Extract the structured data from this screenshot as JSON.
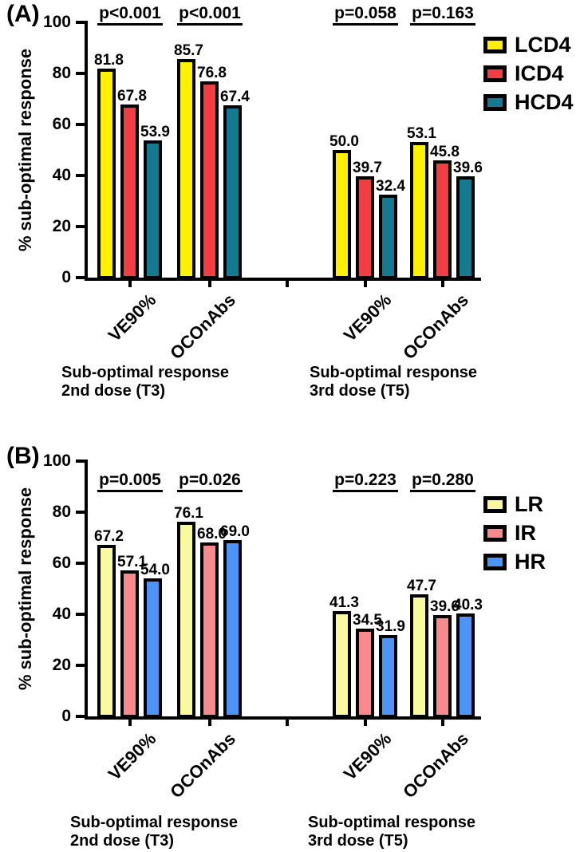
{
  "figure": {
    "background_color": "#FFFFFF",
    "text_color": "#000000",
    "axis_color": "#000000"
  },
  "chart_data": [
    {
      "type": "bar",
      "panel_label": "(A)",
      "ylabel": "% sub-optimal response",
      "ylim": [
        0,
        100
      ],
      "yticks": [
        0,
        20,
        40,
        60,
        80,
        100
      ],
      "grid": false,
      "legend_position": "right",
      "categories": [
        "VE90%",
        "OCOnAbs",
        "VE90%",
        "OCOnAbs"
      ],
      "p_values": [
        "p<0.001",
        "p<0.001",
        "p=0.058",
        "p=0.163"
      ],
      "series": [
        {
          "name": "LCD4",
          "color": "#FFF100",
          "values": [
            81.8,
            85.7,
            50.0,
            53.1
          ]
        },
        {
          "name": "ICD4",
          "color": "#F23E42",
          "values": [
            67.8,
            76.8,
            39.7,
            45.8
          ]
        },
        {
          "name": "HCD4",
          "color": "#137A8F",
          "values": [
            53.9,
            67.4,
            32.4,
            39.6
          ]
        }
      ],
      "section_labels": [
        {
          "line1": "Sub-optimal response",
          "line2": "2nd dose (T3)"
        },
        {
          "line1": "Sub-optimal response",
          "line2": "3rd dose (T5)"
        }
      ],
      "bar_outline_color": "#000000"
    },
    {
      "type": "bar",
      "panel_label": "(B)",
      "ylabel": "% sub-optimal response",
      "ylim": [
        0,
        100
      ],
      "yticks": [
        0,
        20,
        40,
        60,
        80,
        100
      ],
      "grid": false,
      "legend_position": "right",
      "categories": [
        "VE90%",
        "OCOnAbs",
        "VE90%",
        "OCOnAbs"
      ],
      "p_values": [
        "p=0.005",
        "p=0.026",
        "p=0.223",
        "p=0.280"
      ],
      "series": [
        {
          "name": "LR",
          "color": "#F9F9A0",
          "values": [
            67.2,
            76.1,
            41.3,
            47.7
          ]
        },
        {
          "name": "IR",
          "color": "#F8898C",
          "values": [
            57.1,
            68.0,
            34.5,
            39.6
          ]
        },
        {
          "name": "HR",
          "color": "#4D94F8",
          "values": [
            54.0,
            69.0,
            31.9,
            40.3
          ]
        }
      ],
      "section_labels": [
        {
          "line1": "Sub-optimal response",
          "line2": "2nd dose (T3)"
        },
        {
          "line1": "Sub-optimal response",
          "line2": "3rd dose (T5)"
        }
      ],
      "bar_outline_color": "#000000"
    }
  ]
}
